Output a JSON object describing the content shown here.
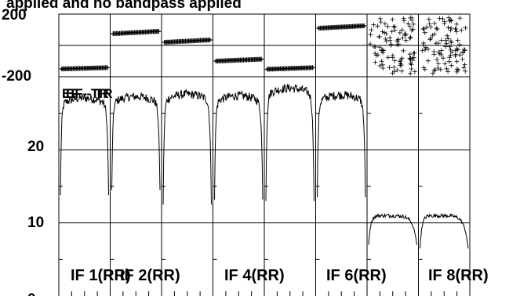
{
  "chart_data": {
    "type": "line",
    "title": "applied and no bandpass applied",
    "baseline_label": "EF - TR",
    "phase_axis": {
      "tick_labels": [
        "200",
        "-200"
      ],
      "ylim": [
        -200,
        200
      ]
    },
    "amp_axis": {
      "tick_labels": [
        "20",
        "10",
        "0"
      ],
      "ylim": [
        0,
        30
      ]
    },
    "panel_labels": [
      "IF 1(RR)",
      "IF 2(RR)",
      "IF 4(RR)",
      "IF 6(RR)",
      "IF 8(RR)"
    ],
    "panels": [
      {
        "if": 1,
        "phase": [
          -150,
          -142
        ],
        "amp_plateau": 26.3,
        "amp_edge": 13.8
      },
      {
        "if": 2,
        "phase": [
          75,
          90
        ],
        "amp_plateau": 26.5,
        "amp_edge": 14.5
      },
      {
        "if": 3,
        "phase": [
          20,
          35
        ],
        "amp_plateau": 26.8,
        "amp_edge": 12.5
      },
      {
        "if": 4,
        "phase": [
          -100,
          -88
        ],
        "amp_plateau": 26.6,
        "amp_edge": 13.2
      },
      {
        "if": 5,
        "phase": [
          -152,
          -142
        ],
        "amp_plateau": 27.6,
        "amp_edge": 13.0
      },
      {
        "if": 6,
        "phase": [
          110,
          125
        ],
        "amp_plateau": 26.7,
        "amp_edge": 13.5
      },
      {
        "if": 7,
        "phase": "random",
        "amp_plateau": 11.0,
        "amp_edge": 7.0
      },
      {
        "if": 8,
        "phase": "random",
        "amp_plateau": 11.0,
        "amp_edge": 6.5
      }
    ]
  },
  "colors": {
    "line": "#000000",
    "grid": "#000000",
    "background": "#ffffff"
  }
}
